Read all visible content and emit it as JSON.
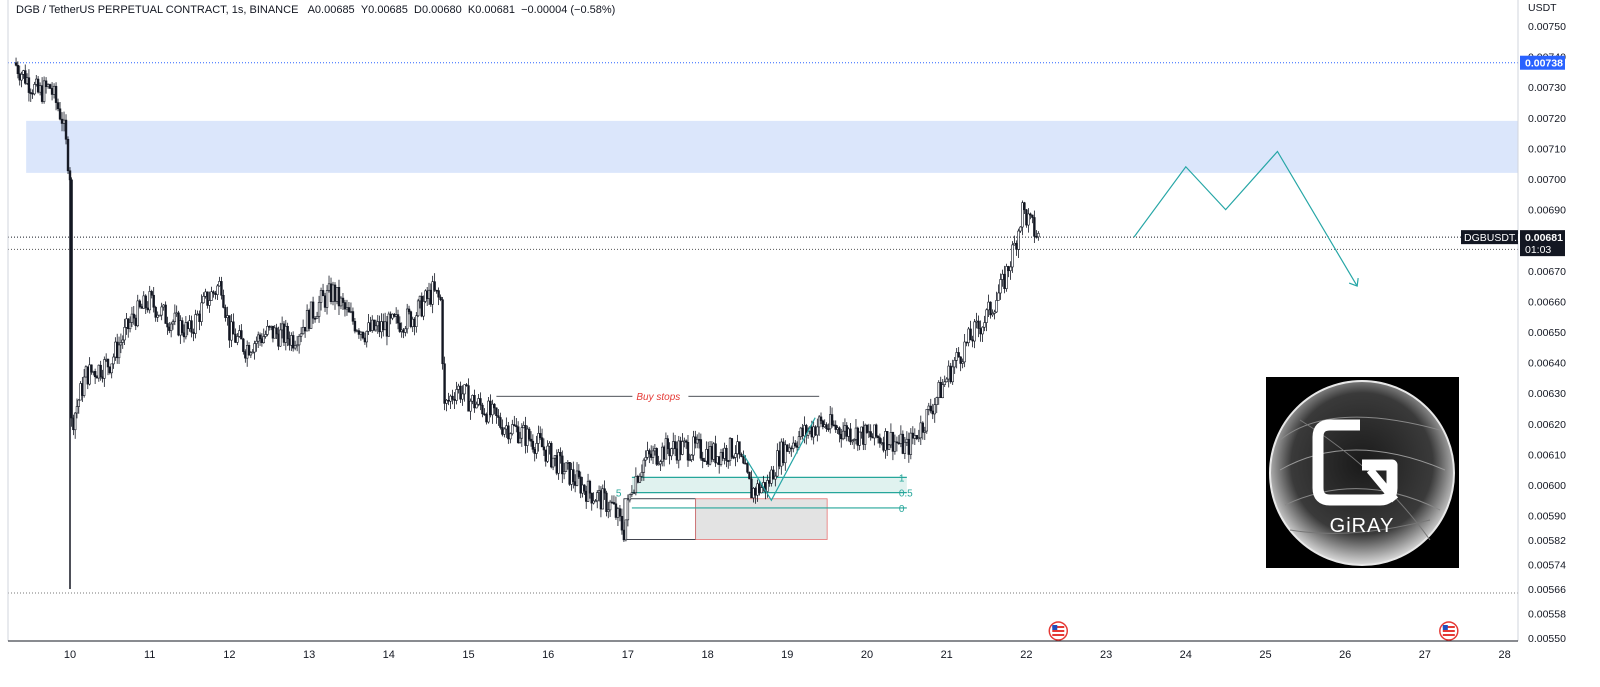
{
  "header": {
    "symbol": "DGB / TetherUS PERPETUAL CONTRACT, 1s, BINANCE",
    "open": "A0.00685",
    "high": "Y0.00685",
    "low": "D0.00680",
    "close": "K0.00681",
    "change": "−0.00004 (−0.58%)"
  },
  "price_axis": {
    "currency": "USDT",
    "ticks": [
      "0.00750",
      "0.00740",
      "0.00730",
      "0.00720",
      "0.00710",
      "0.00700",
      "0.00690",
      "0.00670",
      "0.00660",
      "0.00650",
      "0.00640",
      "0.00630",
      "0.00620",
      "0.00610",
      "0.00600",
      "0.00590",
      "0.00582",
      "0.00574",
      "0.00566",
      "0.00558",
      "0.00550"
    ]
  },
  "price_tags": {
    "high_line": "0.00738",
    "last_price": "0.00681",
    "countdown": "01:03",
    "symbol_tag": "DGBUSDT.P"
  },
  "time_axis": {
    "labels": [
      "10",
      "11",
      "12",
      "13",
      "14",
      "15",
      "16",
      "17",
      "18",
      "19",
      "20",
      "21",
      "22",
      "23",
      "24",
      "25",
      "26",
      "27",
      "28"
    ]
  },
  "annotations": {
    "buy_stops": "Buy stops",
    "fib_1": "1",
    "fib_05": "0.5",
    "fib_0": "0",
    "fib_left_05": "5"
  },
  "logo": {
    "text": "GiRAY"
  },
  "colors": {
    "candle": "#131722",
    "supply_zone": "#dbe6fb",
    "projection": "#26a6a6",
    "fib": "#26a69a",
    "fib_fill": "#e0f2ef",
    "box_fill": "#e3e3e3",
    "box_border": "#e57373",
    "label_blue": "#2962ff",
    "label_black": "#131722",
    "buy_stops_text": "#e53935"
  },
  "chart_data": {
    "type": "candlestick",
    "title": "DGB / TetherUS PERPETUAL CONTRACT, 1s, BINANCE",
    "ylabel": "USDT",
    "ylim": [
      0.0055,
      0.0075
    ],
    "x_labels": [
      "10",
      "11",
      "12",
      "13",
      "14",
      "15",
      "16",
      "17",
      "18",
      "19",
      "20",
      "21",
      "22",
      "23",
      "24",
      "25",
      "26",
      "27",
      "28"
    ],
    "close_path": [
      [
        9.3,
        0.00738
      ],
      [
        9.6,
        0.00728
      ],
      [
        9.75,
        0.0073
      ],
      [
        9.9,
        0.0072
      ],
      [
        10.0,
        0.00702
      ],
      [
        10.02,
        0.0062
      ],
      [
        10.2,
        0.00636
      ],
      [
        10.5,
        0.0064
      ],
      [
        10.8,
        0.00655
      ],
      [
        11.0,
        0.0066
      ],
      [
        11.2,
        0.00655
      ],
      [
        11.5,
        0.0065
      ],
      [
        11.7,
        0.0066
      ],
      [
        11.9,
        0.00666
      ],
      [
        12.0,
        0.0065
      ],
      [
        12.2,
        0.00645
      ],
      [
        12.5,
        0.0065
      ],
      [
        12.8,
        0.00648
      ],
      [
        13.0,
        0.00655
      ],
      [
        13.15,
        0.0066
      ],
      [
        13.3,
        0.00663
      ],
      [
        13.5,
        0.00655
      ],
      [
        13.7,
        0.0065
      ],
      [
        14.0,
        0.00652
      ],
      [
        14.3,
        0.00655
      ],
      [
        14.55,
        0.00663
      ],
      [
        14.65,
        0.0066
      ],
      [
        14.7,
        0.00625
      ],
      [
        14.85,
        0.00632
      ],
      [
        15.0,
        0.00628
      ],
      [
        15.2,
        0.00625
      ],
      [
        15.4,
        0.0062
      ],
      [
        15.6,
        0.00618
      ],
      [
        15.9,
        0.00613
      ],
      [
        16.2,
        0.00605
      ],
      [
        16.5,
        0.00598
      ],
      [
        16.8,
        0.00593
      ],
      [
        16.95,
        0.00585
      ],
      [
        17.05,
        0.006
      ],
      [
        17.2,
        0.00608
      ],
      [
        17.5,
        0.00612
      ],
      [
        17.8,
        0.00612
      ],
      [
        18.1,
        0.0061
      ],
      [
        18.35,
        0.00612
      ],
      [
        18.55,
        0.00598
      ],
      [
        18.75,
        0.006
      ],
      [
        18.9,
        0.0061
      ],
      [
        19.1,
        0.00615
      ],
      [
        19.4,
        0.0062
      ],
      [
        19.7,
        0.00618
      ],
      [
        20.0,
        0.00616
      ],
      [
        20.3,
        0.00615
      ],
      [
        20.5,
        0.00612
      ],
      [
        20.7,
        0.0062
      ],
      [
        20.9,
        0.0063
      ],
      [
        21.1,
        0.0064
      ],
      [
        21.3,
        0.00648
      ],
      [
        21.5,
        0.00655
      ],
      [
        21.7,
        0.00665
      ],
      [
        21.85,
        0.00678
      ],
      [
        21.95,
        0.0069
      ],
      [
        22.05,
        0.00685
      ],
      [
        22.15,
        0.00681
      ]
    ],
    "wick_extremes": {
      "low": [
        10.0,
        0.00566
      ]
    },
    "supply_zone": {
      "x": [
        9.45,
        29.2
      ],
      "y": [
        0.00702,
        0.00719
      ]
    },
    "high_line": 0.00738,
    "last_price_line": 0.00681,
    "lower_dotted_line": 0.00677,
    "bottom_dotted_line": 0.005647,
    "buy_stops_line": {
      "x": [
        15.35,
        19.4
      ],
      "y": 0.00629
    },
    "fib": {
      "x": [
        17.05,
        20.5
      ],
      "level_1": 0.006025,
      "level_05": 0.005975,
      "level_0": 0.005925
    },
    "gray_box": {
      "x": [
        17.85,
        19.5
      ],
      "y": [
        0.005822,
        0.005955
      ]
    },
    "fib_left_box": {
      "x": [
        16.95,
        17.85
      ],
      "y": [
        0.005822,
        0.005955
      ]
    },
    "dip_line": [
      [
        18.45,
        0.0061
      ],
      [
        18.8,
        0.00595
      ],
      [
        19.35,
        0.00622
      ]
    ],
    "projection": [
      [
        23.35,
        0.00681
      ],
      [
        24.0,
        0.00704
      ],
      [
        24.5,
        0.0069
      ],
      [
        25.15,
        0.00709
      ],
      [
        26.15,
        0.00665
      ]
    ],
    "event_icons_x": [
      22.4,
      27.3
    ]
  }
}
